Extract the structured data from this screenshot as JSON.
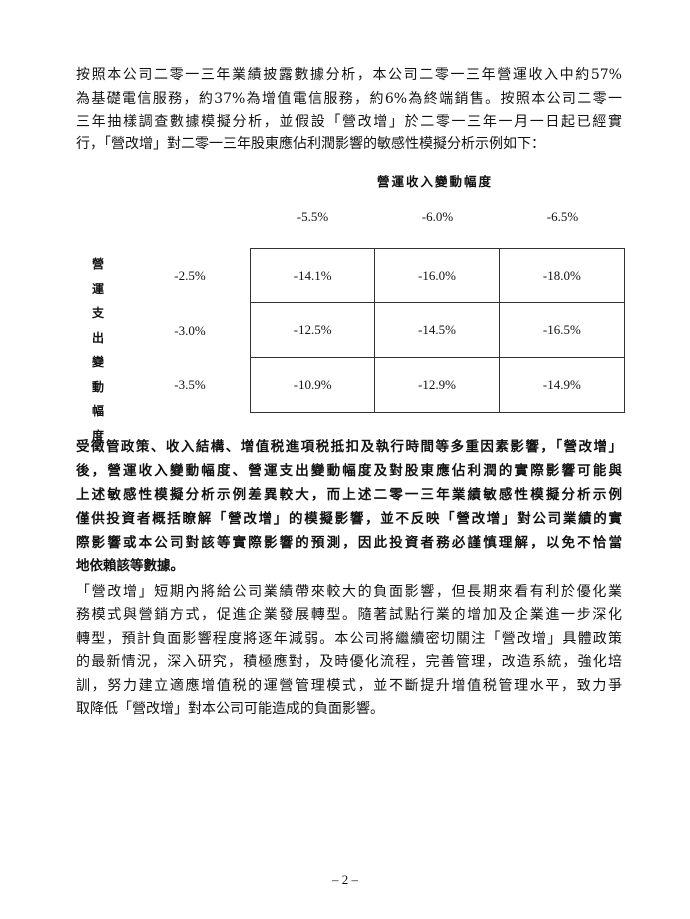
{
  "para1": [
    "按照本公司二零一三年業績披露數據分析，本公司二零一三年營運收入中約57%",
    "為基礎電信服務，約37%為增值電信服務，約6%為終端銷售。按照本公司二零一",
    "三年抽樣調查數據模擬分析，並假設「營改增」於二零一三年一月一日起已經實",
    "行，「營改增」對二零一三年股東應佔利潤影響的敏感性模擬分析示例如下："
  ],
  "table": {
    "col_title": "營運收入變動幅度",
    "row_title": [
      "營",
      "運",
      "支",
      "出",
      "變",
      "動",
      "幅",
      "度"
    ],
    "columns": [
      "-5.5%",
      "-6.0%",
      "-6.5%"
    ],
    "rows": [
      {
        "label": "-2.5%",
        "values": [
          "-14.1%",
          "-16.0%",
          "-18.0%"
        ]
      },
      {
        "label": "-3.0%",
        "values": [
          "-12.5%",
          "-14.5%",
          "-16.5%"
        ]
      },
      {
        "label": "-3.5%",
        "values": [
          "-10.9%",
          "-12.9%",
          "-14.9%"
        ]
      }
    ]
  },
  "para2": [
    "受徵管政策、收入結構、增值税進項税抵扣及執行時間等多重因素影響，「營改增」",
    "後，營運收入變動幅度、營運支出變動幅度及對股東應佔利潤的實際影響可能與",
    "上述敏感性模擬分析示例差異較大，而上述二零一三年業績敏感性模擬分析示例",
    "僅供投資者概括瞭解「營改增」的模擬影響，並不反映「營改增」對公司業績的實",
    "際影響或本公司對該等實際影響的預測，因此投資者務必謹慎理解，以免不恰當",
    "地依賴該等數據。"
  ],
  "para3": [
    "「營改增」短期內將給公司業績帶來較大的負面影響，但長期來看有利於優化業",
    "務模式與營銷方式，促進企業發展轉型。隨著試點行業的增加及企業進一步深化",
    "轉型，預計負面影響程度將逐年減弱。本公司將繼續密切關注「營改增」具體政策",
    "的最新情況，深入研究，積極應對，及時優化流程，完善管理，改造系統，強化培",
    "訓，努力建立適應增值税的運營管理模式，並不斷提升增值税管理水平，致力爭",
    "取降低「營改增」對本公司可能造成的負面影響。"
  ],
  "footer": {
    "page": "– 2 –"
  }
}
